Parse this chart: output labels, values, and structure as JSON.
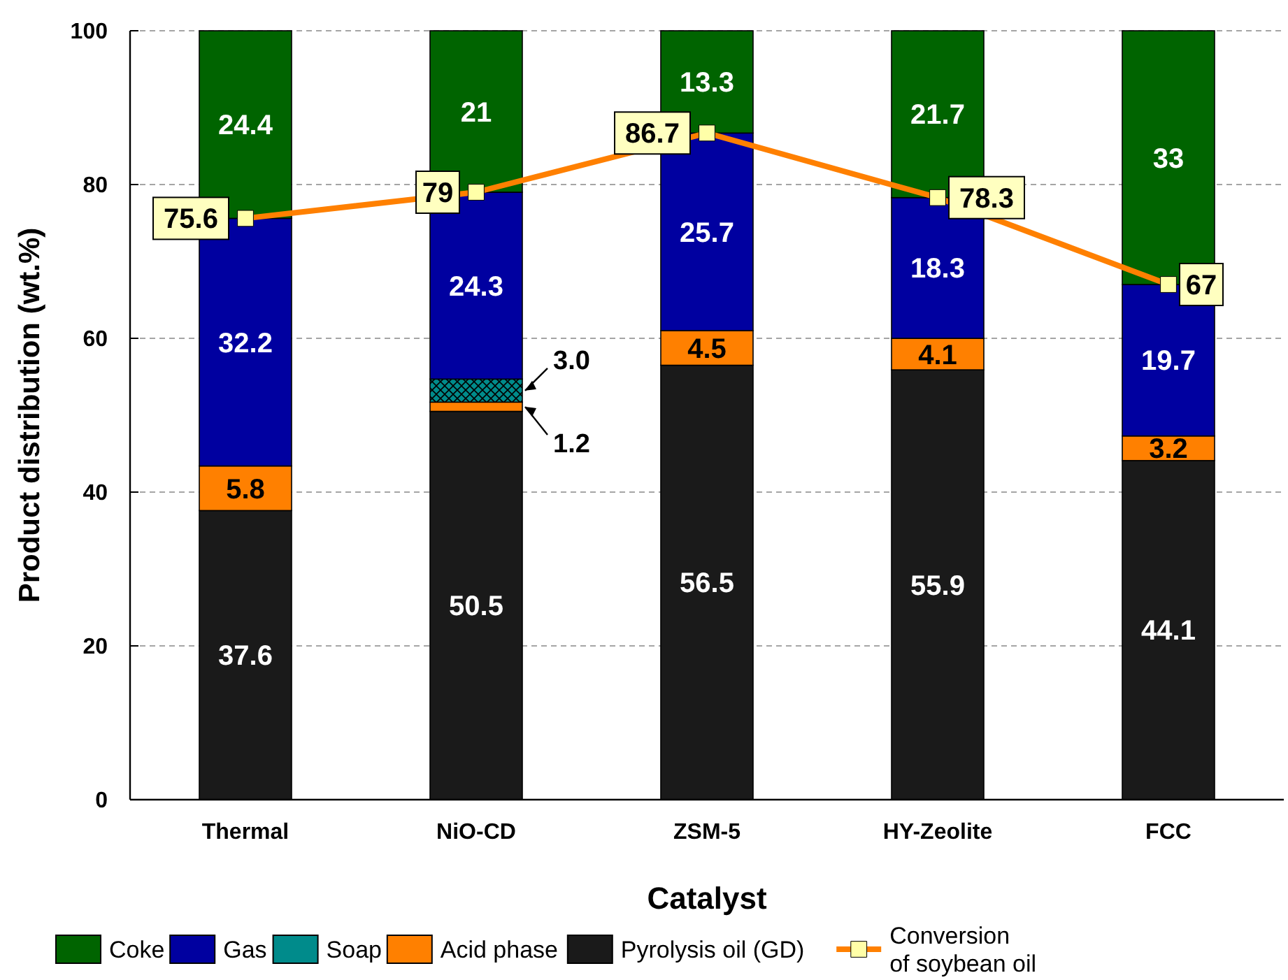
{
  "chart_data": {
    "type": "bar",
    "stacked": true,
    "xlabel": "Catalyst",
    "ylabel": "Product distribution (wt.%)",
    "categories": [
      "Thermal",
      "NiO-CD",
      "ZSM-5",
      "HY-Zeolite",
      "FCC"
    ],
    "series": [
      {
        "name": "Pyrolysis oil (GD)",
        "color": "#1a1a1a",
        "values": [
          37.6,
          50.5,
          56.5,
          55.9,
          44.1
        ],
        "value_labels": [
          "37.6",
          "50.5",
          "56.5",
          "55.9",
          "44.1"
        ]
      },
      {
        "name": "Acid phase",
        "color": "#ff8000",
        "values": [
          5.8,
          1.2,
          4.5,
          4.1,
          3.2
        ],
        "value_labels": [
          "5.8",
          "1.2",
          "4.5",
          "4.1",
          "3.2"
        ]
      },
      {
        "name": "Soap",
        "color": "#008b8b",
        "values": [
          null,
          3.0,
          null,
          null,
          null
        ],
        "value_labels": [
          null,
          "3.0",
          null,
          null,
          null
        ]
      },
      {
        "name": "Gas",
        "color": "#0000a0",
        "values": [
          32.2,
          24.3,
          25.7,
          18.3,
          19.7
        ],
        "value_labels": [
          "32.2",
          "24.3",
          "25.7",
          "18.3",
          "19.7"
        ]
      },
      {
        "name": "Coke",
        "color": "#006400",
        "values": [
          24.4,
          21,
          13.3,
          21.7,
          33
        ],
        "value_labels": [
          "24.4",
          "21",
          "13.3",
          "21.7",
          "33"
        ]
      },
      {
        "name": "Conversion of soybean oil",
        "type": "line",
        "color": "#ff8000",
        "marker": "square",
        "values": [
          75.6,
          79,
          86.7,
          78.3,
          67
        ],
        "value_labels": [
          "75.6",
          "79",
          "86.7",
          "78.3",
          "67"
        ]
      }
    ],
    "ylim": [
      0,
      100
    ],
    "yticks": [
      0,
      20,
      40,
      60,
      80,
      100
    ],
    "grid": "y",
    "legend": "bottom"
  }
}
